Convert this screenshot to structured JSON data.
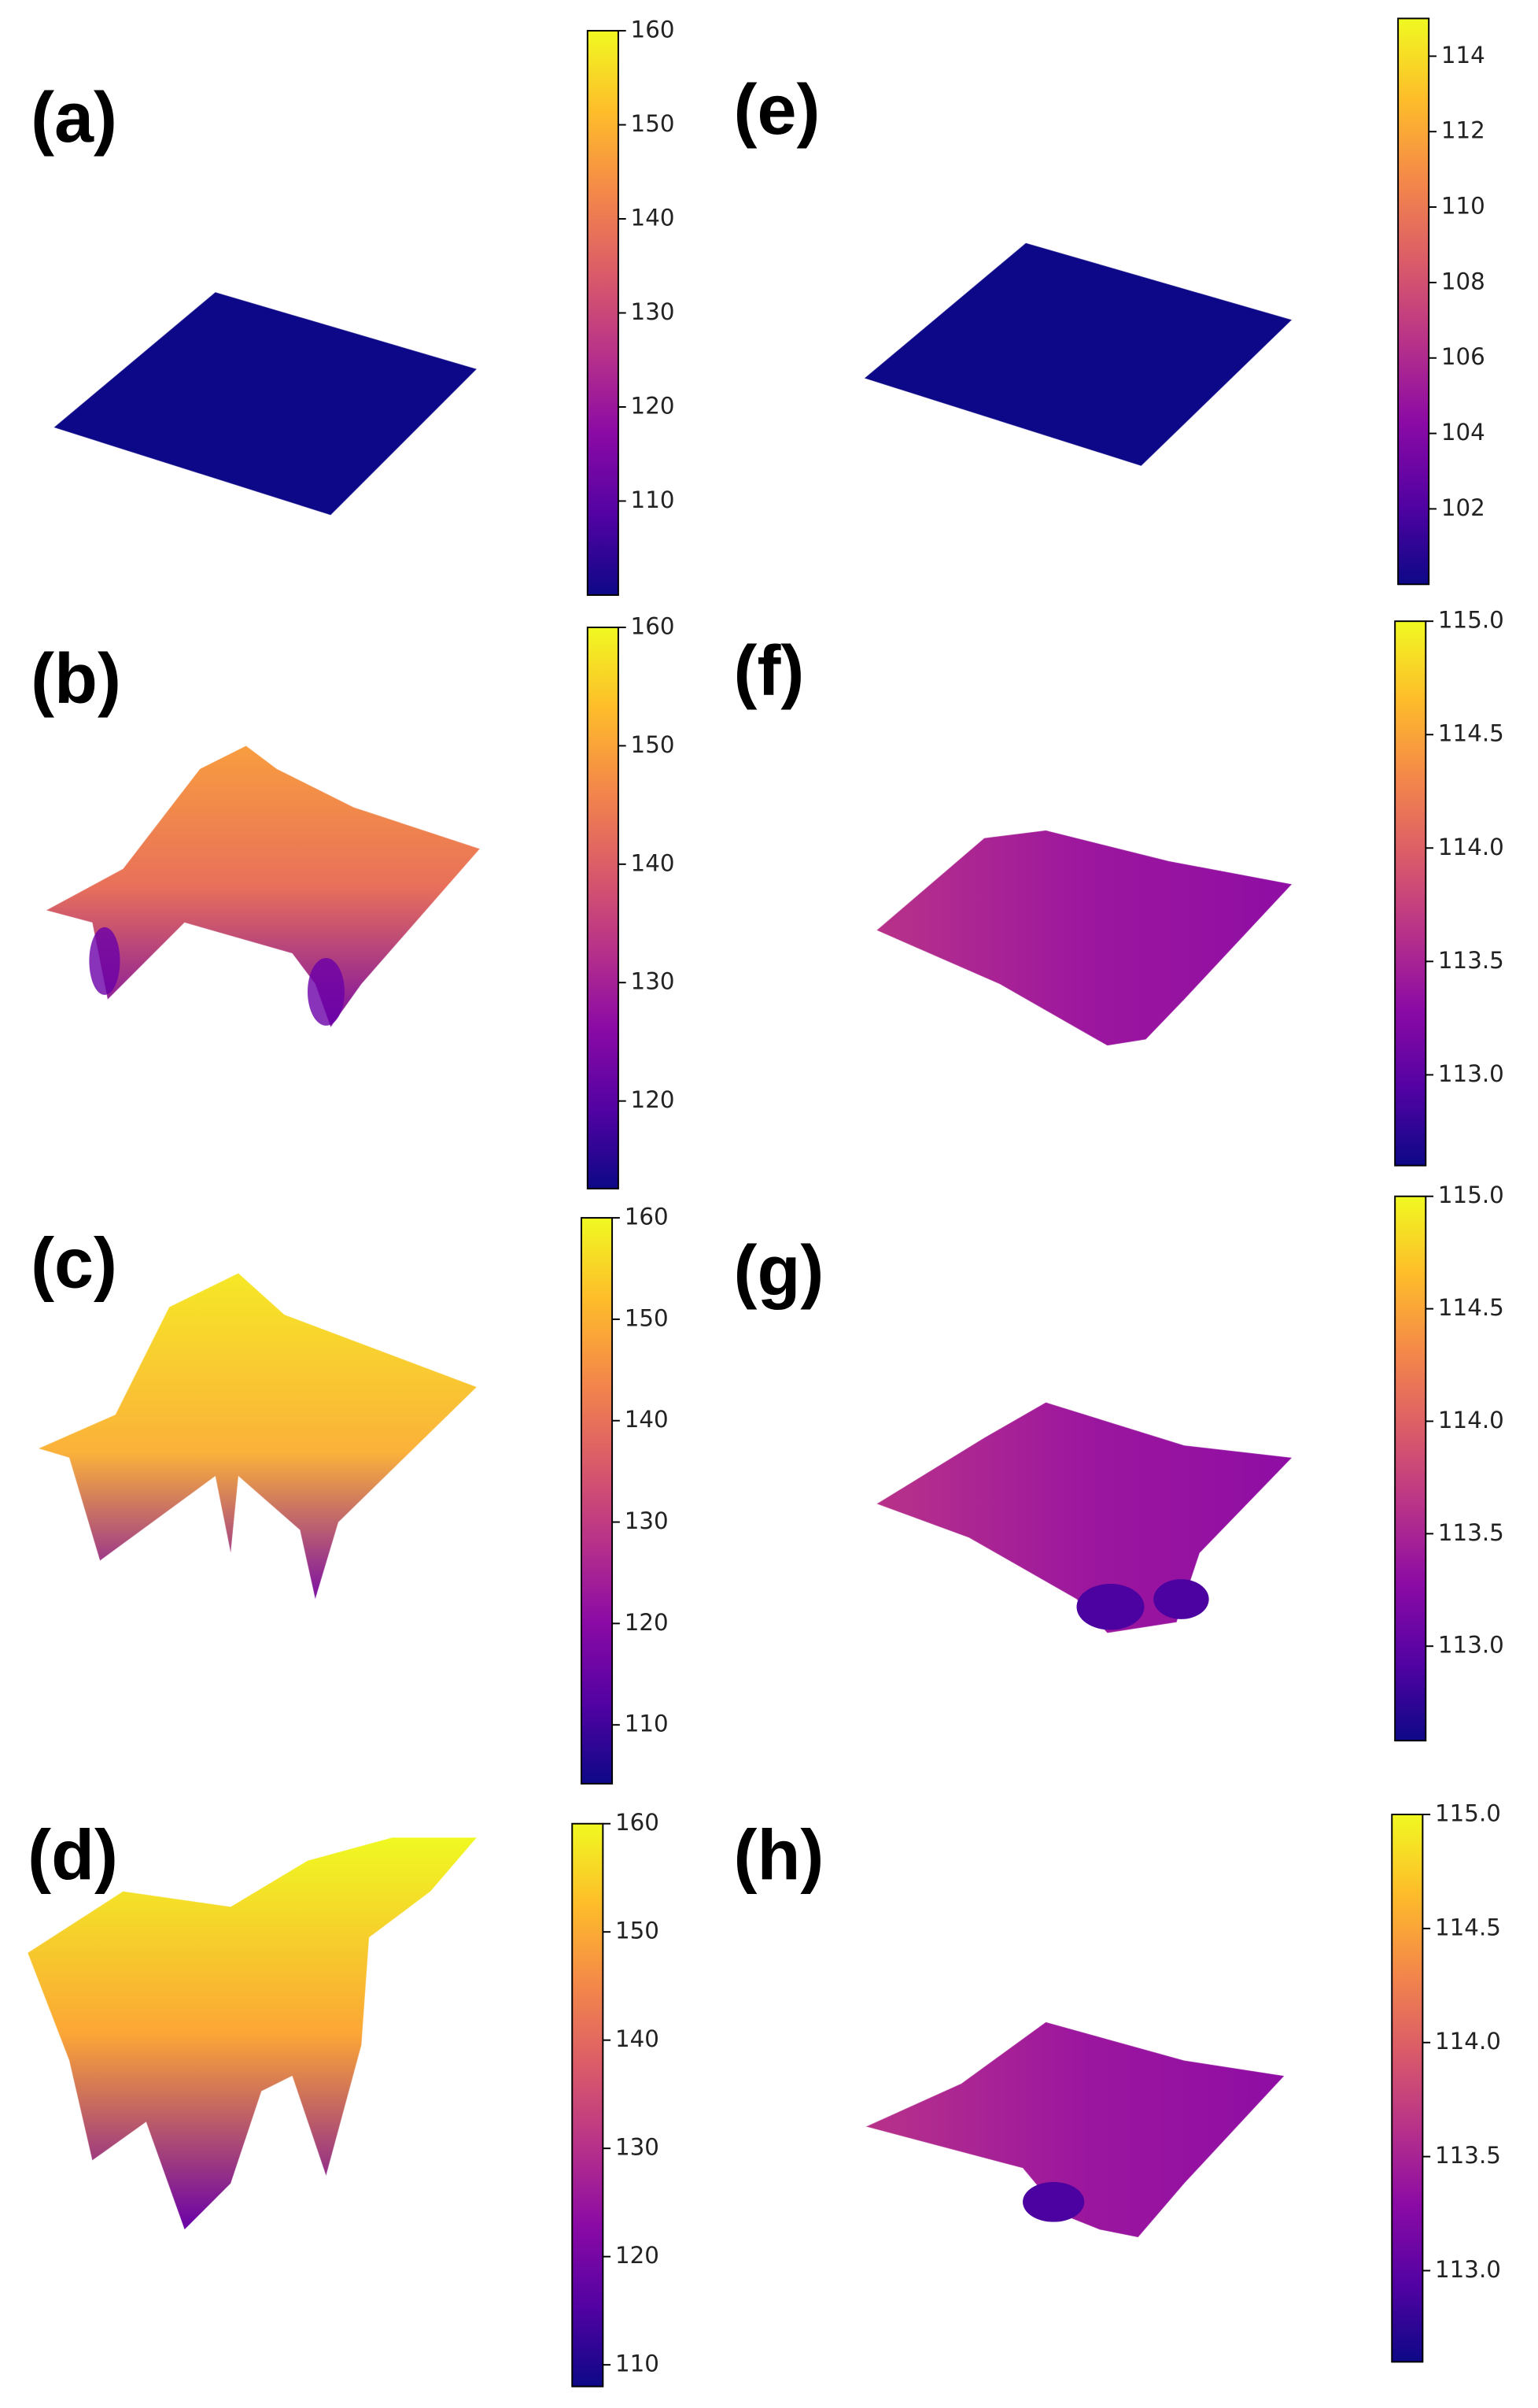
{
  "chart_data": [
    {
      "type": "surface",
      "label": "(a)",
      "colormap": "plasma",
      "clim": [
        100,
        160
      ],
      "cticks": [
        110,
        120,
        130,
        140,
        150,
        160
      ]
    },
    {
      "type": "surface",
      "label": "(b)",
      "colormap": "plasma",
      "clim": [
        112.6,
        160
      ],
      "cticks": [
        120,
        130,
        140,
        150,
        160
      ]
    },
    {
      "type": "surface",
      "label": "(c)",
      "colormap": "plasma",
      "clim": [
        104.2,
        160
      ],
      "cticks": [
        110,
        120,
        130,
        140,
        150,
        160
      ]
    },
    {
      "type": "surface",
      "label": "(d)",
      "colormap": "plasma",
      "clim": [
        108,
        160
      ],
      "cticks": [
        110,
        120,
        130,
        140,
        150,
        160
      ]
    },
    {
      "type": "surface",
      "label": "(e)",
      "colormap": "plasma",
      "clim": [
        100,
        115
      ],
      "cticks": [
        102,
        104,
        106,
        108,
        110,
        112,
        114
      ]
    },
    {
      "type": "surface",
      "label": "(f)",
      "colormap": "plasma",
      "clim": [
        112.6,
        115
      ],
      "cticks": [
        {
          "value": 113,
          "label": "113.0"
        },
        {
          "value": 113.5,
          "label": "113.5"
        },
        {
          "value": 114,
          "label": "114.0"
        },
        {
          "value": 114.5,
          "label": "114.5"
        },
        {
          "value": 115,
          "label": "115.0"
        }
      ]
    },
    {
      "type": "surface",
      "label": "(g)",
      "colormap": "plasma",
      "clim": [
        112.58,
        115
      ],
      "cticks": [
        {
          "value": 113,
          "label": "113.0"
        },
        {
          "value": 113.5,
          "label": "113.5"
        },
        {
          "value": 114,
          "label": "114.0"
        },
        {
          "value": 114.5,
          "label": "114.5"
        },
        {
          "value": 115,
          "label": "115.0"
        }
      ]
    },
    {
      "type": "surface",
      "label": "(h)",
      "colormap": "plasma",
      "clim": [
        112.6,
        115
      ],
      "cticks": [
        {
          "value": 113,
          "label": "113.0"
        },
        {
          "value": 113.5,
          "label": "113.5"
        },
        {
          "value": 114,
          "label": "114.0"
        },
        {
          "value": 114.5,
          "label": "114.5"
        },
        {
          "value": 115,
          "label": "115.0"
        }
      ]
    }
  ]
}
